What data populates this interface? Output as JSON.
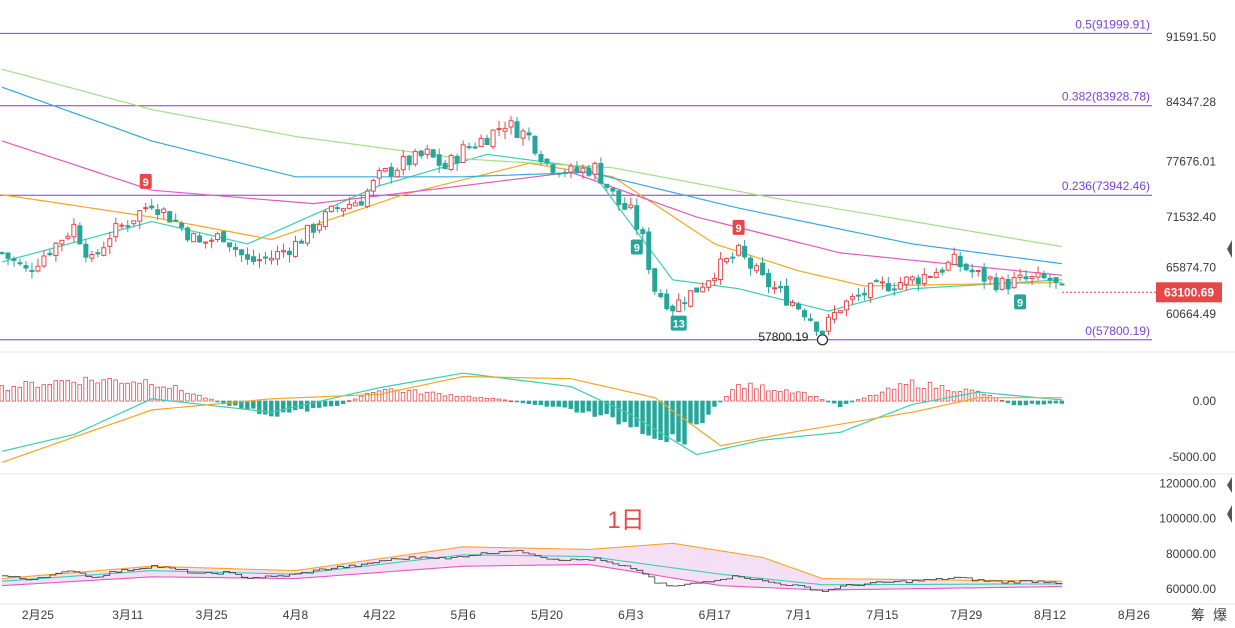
{
  "colors": {
    "up": "#e8474a",
    "down": "#26a69a",
    "fib_line": "#7b3fd6",
    "fib_top": "#3b6fc2",
    "ma_short": "#3ccfb0",
    "ma_mid": "#f5a623",
    "ma_long1": "#e05bc4",
    "ma_long2": "#38a9e0",
    "ma_long3": "#a7dc8a",
    "price_tag": "#e8474a"
  },
  "chart_data": [
    {
      "type": "candlestick",
      "x_start": "2024-02-19",
      "x_end": "2024-08-14",
      "ylim": [
        58000,
        93500
      ],
      "y_ticks": [
        "91591.50",
        "84347.28",
        "77676.01",
        "71532.40",
        "65874.70",
        "60664.49"
      ],
      "x_ticks": [
        "2月25",
        "3月11",
        "3月25",
        "4月8",
        "4月22",
        "5月6",
        "5月20",
        "6月3",
        "6月17",
        "7月1",
        "7月15",
        "7月29",
        "8月12",
        "8月26"
      ],
      "x_tick_dates": [
        "2024-02-25",
        "2024-03-11",
        "2024-03-25",
        "2024-04-08",
        "2024-04-22",
        "2024-05-06",
        "2024-05-20",
        "2024-06-03",
        "2024-06-17",
        "2024-07-01",
        "2024-07-15",
        "2024-07-29",
        "2024-08-12",
        "2024-08-26"
      ],
      "fib_levels": [
        {
          "label": "0.5(91999.91)",
          "value": 91999.91
        },
        {
          "label": "0.382(83928.78)",
          "value": 83928.78
        },
        {
          "label": "0.236(73942.46)",
          "value": 73942.46
        },
        {
          "label": "0(57800.19)",
          "value": 57800.19
        }
      ],
      "last_price": "63100.69",
      "low_marker": {
        "label": "57800.19",
        "date": "2024-07-05",
        "value": 57800.19
      },
      "td_badges": [
        {
          "text": "9",
          "date": "2024-03-14",
          "kind": "up"
        },
        {
          "text": "9",
          "date": "2024-06-21",
          "kind": "up"
        },
        {
          "text": "9",
          "date": "2024-06-04",
          "kind": "down"
        },
        {
          "text": "13",
          "date": "2024-06-11",
          "kind": "down"
        },
        {
          "text": "9",
          "date": "2024-08-07",
          "kind": "down"
        }
      ],
      "keypoints": [
        [
          "2024-02-19",
          67500
        ],
        [
          "2024-02-23",
          65500
        ],
        [
          "2024-02-28",
          68500
        ],
        [
          "2024-03-02",
          70500
        ],
        [
          "2024-03-05",
          66500
        ],
        [
          "2024-03-08",
          69500
        ],
        [
          "2024-03-12",
          71500
        ],
        [
          "2024-03-15",
          73200
        ],
        [
          "2024-03-19",
          71000
        ],
        [
          "2024-03-23",
          68500
        ],
        [
          "2024-03-27",
          69500
        ],
        [
          "2024-03-31",
          66500
        ],
        [
          "2024-04-04",
          67000
        ],
        [
          "2024-04-08",
          68500
        ],
        [
          "2024-04-12",
          71000
        ],
        [
          "2024-04-15",
          72500
        ],
        [
          "2024-04-19",
          73500
        ],
        [
          "2024-04-22",
          76000
        ],
        [
          "2024-04-26",
          77500
        ],
        [
          "2024-04-30",
          78500
        ],
        [
          "2024-05-03",
          77000
        ],
        [
          "2024-05-06",
          79000
        ],
        [
          "2024-05-10",
          80500
        ],
        [
          "2024-05-13",
          82000
        ],
        [
          "2024-05-17",
          80500
        ],
        [
          "2024-05-20",
          77500
        ],
        [
          "2024-05-24",
          76500
        ],
        [
          "2024-05-28",
          77000
        ],
        [
          "2024-06-01",
          73000
        ],
        [
          "2024-06-03",
          72000
        ],
        [
          "2024-06-05",
          69000
        ],
        [
          "2024-06-07",
          63500
        ],
        [
          "2024-06-10",
          61500
        ],
        [
          "2024-06-14",
          63500
        ],
        [
          "2024-06-17",
          65500
        ],
        [
          "2024-06-21",
          67500
        ],
        [
          "2024-06-25",
          64500
        ],
        [
          "2024-06-29",
          62500
        ],
        [
          "2024-07-02",
          61000
        ],
        [
          "2024-07-05",
          58800
        ],
        [
          "2024-07-08",
          61500
        ],
        [
          "2024-07-12",
          63000
        ],
        [
          "2024-07-16",
          64000
        ],
        [
          "2024-07-20",
          64500
        ],
        [
          "2024-07-24",
          65500
        ],
        [
          "2024-07-27",
          66500
        ],
        [
          "2024-07-31",
          65000
        ],
        [
          "2024-08-04",
          64000
        ],
        [
          "2024-08-08",
          64500
        ],
        [
          "2024-08-12",
          64500
        ],
        [
          "2024-08-14",
          63100
        ]
      ],
      "ma_series": [
        {
          "key": "ma_short",
          "points": [
            [
              "2024-02-19",
              66500
            ],
            [
              "2024-03-15",
              71000
            ],
            [
              "2024-03-31",
              68500
            ],
            [
              "2024-04-22",
              75000
            ],
            [
              "2024-05-10",
              78500
            ],
            [
              "2024-05-27",
              77000
            ],
            [
              "2024-06-10",
              64500
            ],
            [
              "2024-06-21",
              63500
            ],
            [
              "2024-07-06",
              61000
            ],
            [
              "2024-07-20",
              63500
            ],
            [
              "2024-08-14",
              64500
            ]
          ]
        },
        {
          "key": "ma_mid",
          "points": [
            [
              "2024-02-19",
              74000
            ],
            [
              "2024-03-15",
              71500
            ],
            [
              "2024-04-04",
              69000
            ],
            [
              "2024-04-26",
              74000
            ],
            [
              "2024-05-17",
              77500
            ],
            [
              "2024-05-31",
              76000
            ],
            [
              "2024-06-17",
              68500
            ],
            [
              "2024-07-01",
              65500
            ],
            [
              "2024-07-12",
              63800
            ],
            [
              "2024-08-14",
              64200
            ]
          ]
        },
        {
          "key": "ma_long1",
          "points": [
            [
              "2024-02-19",
              80000
            ],
            [
              "2024-03-15",
              74500
            ],
            [
              "2024-04-11",
              73000
            ],
            [
              "2024-05-06",
              75000
            ],
            [
              "2024-05-24",
              76500
            ],
            [
              "2024-06-14",
              71500
            ],
            [
              "2024-07-08",
              67500
            ],
            [
              "2024-08-14",
              65000
            ]
          ]
        },
        {
          "key": "ma_long2",
          "points": [
            [
              "2024-02-19",
              86000
            ],
            [
              "2024-03-15",
              80000
            ],
            [
              "2024-04-08",
              76000
            ],
            [
              "2024-05-06",
              76000
            ],
            [
              "2024-05-27",
              76500
            ],
            [
              "2024-06-21",
              72500
            ],
            [
              "2024-07-20",
              68500
            ],
            [
              "2024-08-14",
              66300
            ]
          ]
        },
        {
          "key": "ma_long3",
          "points": [
            [
              "2024-02-19",
              88000
            ],
            [
              "2024-03-15",
              83500
            ],
            [
              "2024-04-08",
              80500
            ],
            [
              "2024-05-06",
              78000
            ],
            [
              "2024-05-31",
              77000
            ],
            [
              "2024-06-28",
              73500
            ],
            [
              "2024-07-29",
              70000
            ],
            [
              "2024-08-14",
              68200
            ]
          ]
        }
      ]
    },
    {
      "type": "macd",
      "ylim": [
        -6000,
        3500
      ],
      "y_ticks": [
        "0.00",
        "-5000.00"
      ],
      "y_tick_values": [
        0,
        -5000
      ],
      "hist": [
        [
          "2024-02-19",
          1200
        ],
        [
          "2024-03-02",
          1900
        ],
        [
          "2024-03-15",
          1800
        ],
        [
          "2024-03-27",
          -200
        ],
        [
          "2024-04-04",
          -1200
        ],
        [
          "2024-04-15",
          -400
        ],
        [
          "2024-04-22",
          1100
        ],
        [
          "2024-05-03",
          600
        ],
        [
          "2024-05-13",
          100
        ],
        [
          "2024-05-24",
          -700
        ],
        [
          "2024-06-03",
          -2000
        ],
        [
          "2024-06-11",
          -3600
        ],
        [
          "2024-06-21",
          1400
        ],
        [
          "2024-07-01",
          900
        ],
        [
          "2024-07-08",
          -400
        ],
        [
          "2024-07-20",
          1600
        ],
        [
          "2024-07-31",
          800
        ],
        [
          "2024-08-06",
          -300
        ],
        [
          "2024-08-14",
          -200
        ]
      ],
      "dif": [
        [
          "2024-02-19",
          -4500
        ],
        [
          "2024-03-02",
          -3000
        ],
        [
          "2024-03-15",
          200
        ],
        [
          "2024-04-04",
          -1000
        ],
        [
          "2024-04-22",
          1200
        ],
        [
          "2024-05-06",
          2500
        ],
        [
          "2024-05-24",
          1300
        ],
        [
          "2024-06-03",
          -1200
        ],
        [
          "2024-06-14",
          -4800
        ],
        [
          "2024-06-25",
          -3500
        ],
        [
          "2024-07-08",
          -2800
        ],
        [
          "2024-07-20",
          -300
        ],
        [
          "2024-07-31",
          800
        ],
        [
          "2024-08-14",
          100
        ]
      ],
      "dea": [
        [
          "2024-02-19",
          -5500
        ],
        [
          "2024-03-15",
          -800
        ],
        [
          "2024-04-04",
          200
        ],
        [
          "2024-04-22",
          600
        ],
        [
          "2024-05-06",
          2200
        ],
        [
          "2024-05-24",
          2000
        ],
        [
          "2024-06-07",
          300
        ],
        [
          "2024-06-18",
          -4000
        ],
        [
          "2024-07-01",
          -2700
        ],
        [
          "2024-07-20",
          -1000
        ],
        [
          "2024-07-31",
          300
        ],
        [
          "2024-08-14",
          300
        ]
      ]
    },
    {
      "type": "band",
      "ylim": [
        55000,
        123000
      ],
      "y_ticks": [
        "120000.00",
        "100000.00",
        "80000.00",
        "60000.00"
      ],
      "y_tick_values": [
        120000,
        100000,
        80000,
        60000
      ],
      "upper": [
        [
          "2024-02-19",
          66000
        ],
        [
          "2024-03-15",
          73000
        ],
        [
          "2024-04-08",
          70500
        ],
        [
          "2024-05-06",
          84000
        ],
        [
          "2024-05-27",
          82500
        ],
        [
          "2024-06-10",
          86000
        ],
        [
          "2024-06-25",
          78000
        ],
        [
          "2024-07-05",
          66000
        ],
        [
          "2024-08-14",
          64500
        ]
      ],
      "middle": [
        [
          "2024-02-19",
          64500
        ],
        [
          "2024-03-15",
          70500
        ],
        [
          "2024-04-08",
          68500
        ],
        [
          "2024-05-06",
          79500
        ],
        [
          "2024-05-27",
          78500
        ],
        [
          "2024-06-18",
          68500
        ],
        [
          "2024-07-05",
          62500
        ],
        [
          "2024-08-14",
          63000
        ]
      ],
      "lower": [
        [
          "2024-02-19",
          62000
        ],
        [
          "2024-03-15",
          67000
        ],
        [
          "2024-04-08",
          66000
        ],
        [
          "2024-05-06",
          73000
        ],
        [
          "2024-05-27",
          74000
        ],
        [
          "2024-06-18",
          62000
        ],
        [
          "2024-07-05",
          59500
        ],
        [
          "2024-08-14",
          61500
        ]
      ],
      "timeframe_label": "1日"
    }
  ],
  "corner": {
    "glyph1": "筹",
    "glyph2": "爆"
  }
}
